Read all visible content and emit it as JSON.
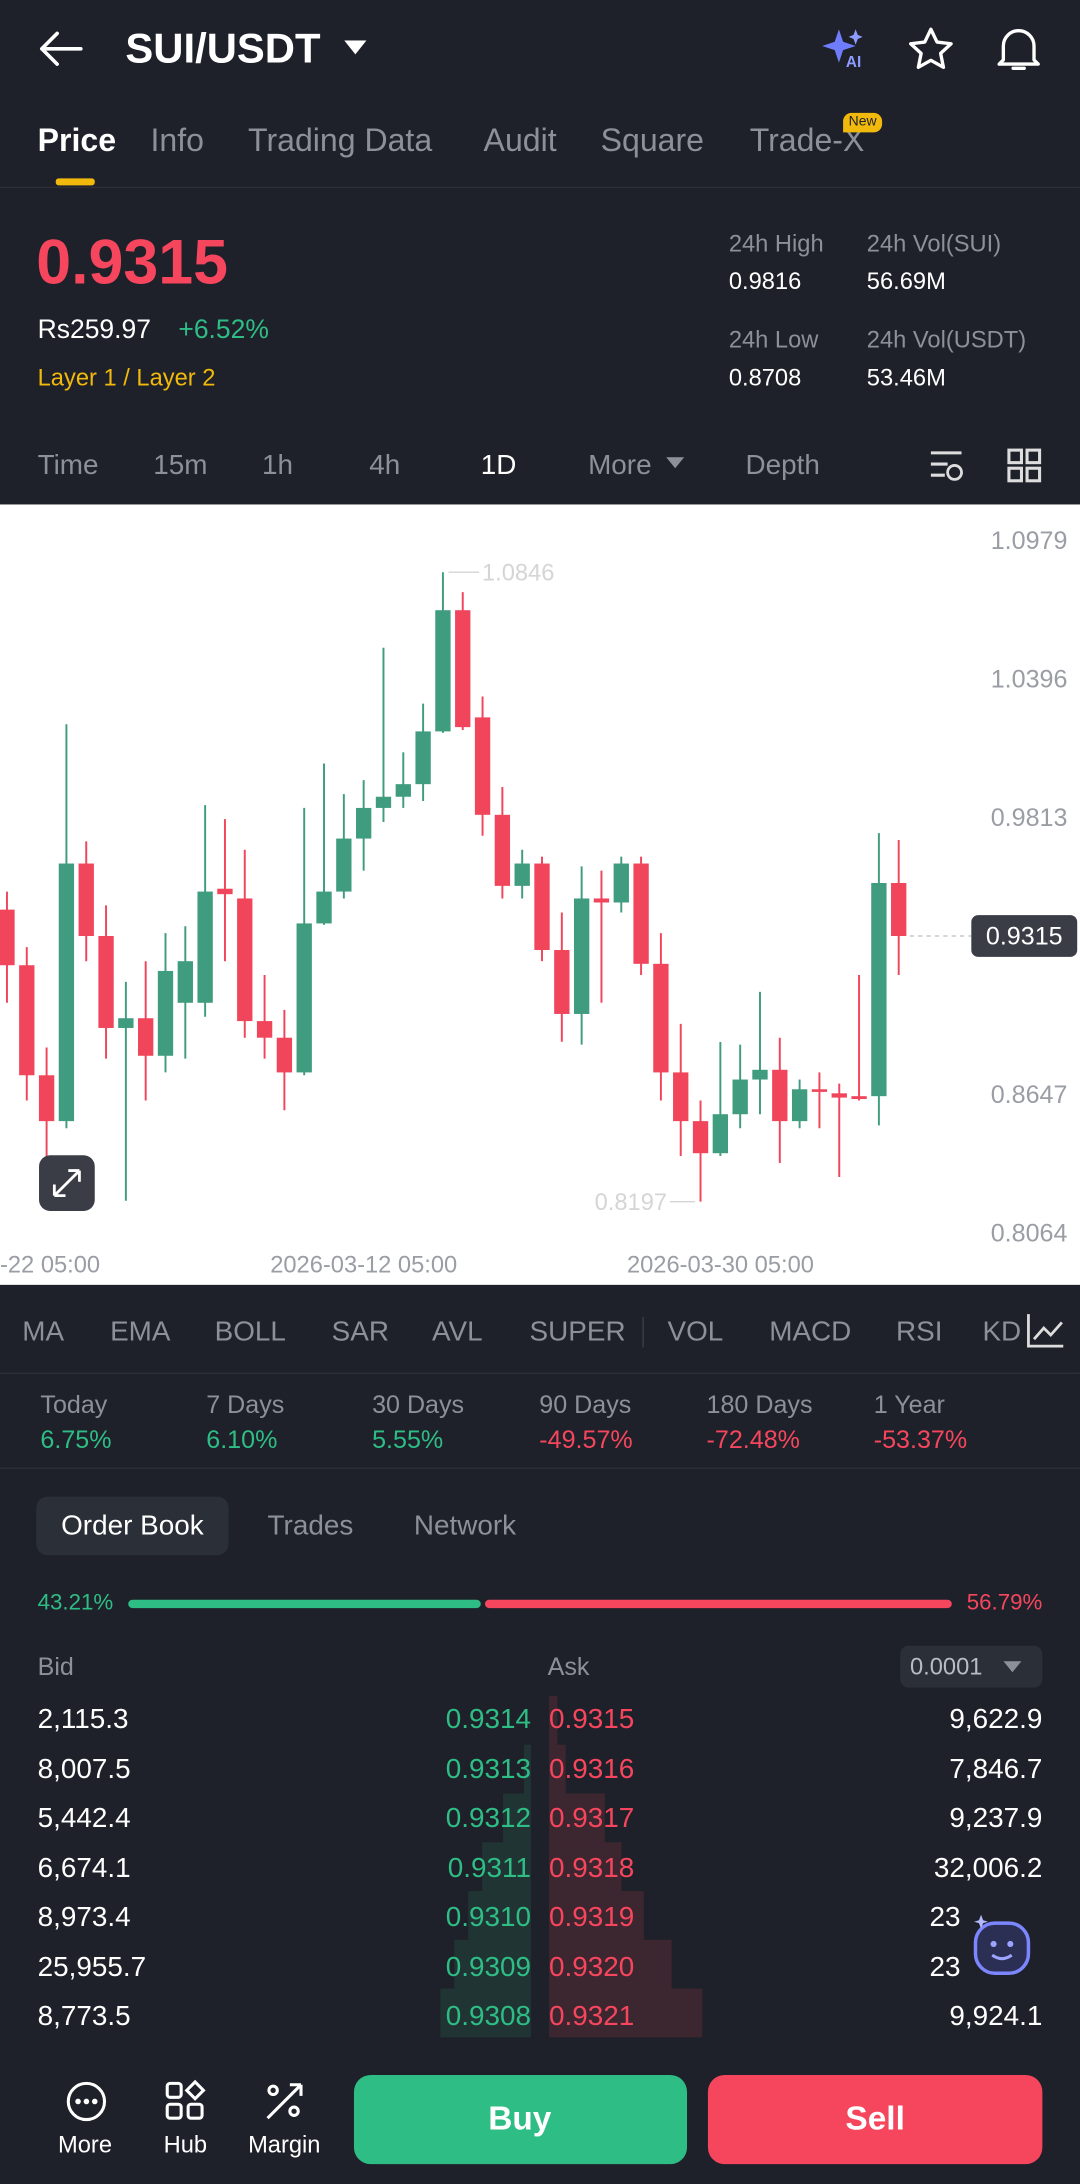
{
  "header": {
    "title": "SUI/USDT"
  },
  "tabs": [
    "Price",
    "Info",
    "Trading Data",
    "Audit",
    "Square",
    "Trade-X"
  ],
  "badge": "New",
  "ticker": {
    "price": "0.9315",
    "fiat": "Rs259.97",
    "change": "+6.52%",
    "tags": "Layer 1 / Layer 2",
    "stats": [
      {
        "label": "24h High",
        "value": "0.9816"
      },
      {
        "label": "24h Vol(SUI)",
        "value": "56.69M"
      },
      {
        "label": "24h Low",
        "value": "0.8708"
      },
      {
        "label": "24h Vol(USDT)",
        "value": "53.46M"
      }
    ]
  },
  "intervals": [
    "Time",
    "15m",
    "1h",
    "4h",
    "1D",
    "More",
    "Depth"
  ],
  "chart": {
    "type": "candlestick",
    "ylim": [
      0.7847,
      1.1131
    ],
    "yticks": [
      1.0979,
      1.0396,
      0.9813,
      0.8647,
      0.8064
    ],
    "last": 0.9315,
    "x_labels": [
      "-22 05:00",
      "2026-03-12 05:00",
      "2026-03-30 05:00"
    ],
    "candles": [
      {
        "open": 0.9426,
        "high": 0.9502,
        "low": 0.9034,
        "close": 0.9192
      },
      {
        "open": 0.9192,
        "high": 0.9268,
        "low": 0.8623,
        "close": 0.8729
      },
      {
        "open": 0.8729,
        "high": 0.8846,
        "low": 0.836,
        "close": 0.8536
      },
      {
        "open": 0.8536,
        "high": 1.0206,
        "low": 0.8506,
        "close": 0.962
      },
      {
        "open": 0.962,
        "high": 0.9713,
        "low": 0.9209,
        "close": 0.9315
      },
      {
        "open": 0.9315,
        "high": 0.9444,
        "low": 0.8799,
        "close": 0.8928
      },
      {
        "open": 0.8928,
        "high": 0.9122,
        "low": 0.8201,
        "close": 0.8969
      },
      {
        "open": 0.8969,
        "high": 0.9209,
        "low": 0.8623,
        "close": 0.8811
      },
      {
        "open": 0.8811,
        "high": 0.9327,
        "low": 0.8741,
        "close": 0.9168
      },
      {
        "open": 0.9034,
        "high": 0.9356,
        "low": 0.8799,
        "close": 0.9209
      },
      {
        "open": 0.9034,
        "high": 0.9866,
        "low": 0.8975,
        "close": 0.9502
      },
      {
        "open": 0.9514,
        "high": 0.9807,
        "low": 0.9209,
        "close": 0.9491
      },
      {
        "open": 0.9473,
        "high": 0.9678,
        "low": 0.8887,
        "close": 0.8957
      },
      {
        "open": 0.8957,
        "high": 0.9151,
        "low": 0.8799,
        "close": 0.8887
      },
      {
        "open": 0.8887,
        "high": 0.9004,
        "low": 0.8582,
        "close": 0.8741
      },
      {
        "open": 0.8741,
        "high": 0.9854,
        "low": 0.8729,
        "close": 0.9368
      },
      {
        "open": 0.9368,
        "high": 1.0041,
        "low": 0.9362,
        "close": 0.9502
      },
      {
        "open": 0.9502,
        "high": 0.9912,
        "low": 0.9473,
        "close": 0.9725
      },
      {
        "open": 0.9725,
        "high": 0.9971,
        "low": 0.959,
        "close": 0.9854
      },
      {
        "open": 0.9854,
        "high": 1.0528,
        "low": 0.9795,
        "close": 0.9901
      },
      {
        "open": 0.9901,
        "high": 1.0088,
        "low": 0.9854,
        "close": 0.9954
      },
      {
        "open": 0.9954,
        "high": 1.0293,
        "low": 0.9883,
        "close": 1.0176
      },
      {
        "open": 1.0176,
        "high": 1.0846,
        "low": 1.017,
        "close": 1.0686
      },
      {
        "open": 1.0686,
        "high": 1.0762,
        "low": 1.0182,
        "close": 1.0194
      },
      {
        "open": 1.0235,
        "high": 1.0323,
        "low": 0.9737,
        "close": 0.9825
      },
      {
        "open": 0.9825,
        "high": 0.9942,
        "low": 0.9473,
        "close": 0.9526
      },
      {
        "open": 0.9526,
        "high": 0.9678,
        "low": 0.9473,
        "close": 0.962
      },
      {
        "open": 0.962,
        "high": 0.9649,
        "low": 0.9209,
        "close": 0.9256
      },
      {
        "open": 0.9256,
        "high": 0.9414,
        "low": 0.887,
        "close": 0.8987
      },
      {
        "open": 0.8987,
        "high": 0.9608,
        "low": 0.8858,
        "close": 0.9473
      },
      {
        "open": 0.9473,
        "high": 0.959,
        "low": 0.9034,
        "close": 0.9456
      },
      {
        "open": 0.9456,
        "high": 0.9649,
        "low": 0.9414,
        "close": 0.962
      },
      {
        "open": 0.962,
        "high": 0.9649,
        "low": 0.9151,
        "close": 0.9198
      },
      {
        "open": 0.9198,
        "high": 0.9327,
        "low": 0.8623,
        "close": 0.8741
      },
      {
        "open": 0.8741,
        "high": 0.8945,
        "low": 0.8389,
        "close": 0.8536
      },
      {
        "open": 0.8536,
        "high": 0.8623,
        "low": 0.8197,
        "close": 0.8401
      },
      {
        "open": 0.8401,
        "high": 0.8869,
        "low": 0.8389,
        "close": 0.8565
      },
      {
        "open": 0.8565,
        "high": 0.8858,
        "low": 0.8506,
        "close": 0.8711
      },
      {
        "open": 0.8711,
        "high": 0.908,
        "low": 0.8565,
        "close": 0.8752
      },
      {
        "open": 0.8752,
        "high": 0.8887,
        "low": 0.836,
        "close": 0.8536
      },
      {
        "open": 0.8536,
        "high": 0.8711,
        "low": 0.8506,
        "close": 0.867
      },
      {
        "open": 0.867,
        "high": 0.8741,
        "low": 0.8506,
        "close": 0.8659
      },
      {
        "open": 0.8653,
        "high": 0.8694,
        "low": 0.8301,
        "close": 0.8635
      },
      {
        "open": 0.8641,
        "high": 0.9151,
        "low": 0.8623,
        "close": 0.8629
      },
      {
        "open": 0.8641,
        "high": 0.9748,
        "low": 0.8518,
        "close": 0.9538
      },
      {
        "open": 0.9538,
        "high": 0.9719,
        "low": 0.9151,
        "close": 0.9315
      }
    ]
  },
  "indicators": [
    "MA",
    "EMA",
    "BOLL",
    "SAR",
    "AVL",
    "SUPER",
    "VOL",
    "MACD",
    "RSI",
    "KD"
  ],
  "performance": [
    {
      "label": "Today",
      "value": "6.75%"
    },
    {
      "label": "7 Days",
      "value": "6.10%"
    },
    {
      "label": "30 Days",
      "value": "5.55%"
    },
    {
      "label": "90 Days",
      "value": "-49.57%"
    },
    {
      "label": "180 Days",
      "value": "-72.48%"
    },
    {
      "label": "1 Year",
      "value": "-53.37%"
    }
  ],
  "book_tabs": [
    "Order Book",
    "Trades",
    "Network"
  ],
  "ratio": {
    "values": [
      43.21,
      56.79
    ],
    "value_labels": [
      "43.21%",
      "56.79%"
    ]
  },
  "book": {
    "bid_header": "Bid",
    "ask_header": "Ask",
    "step": "0.0001",
    "rows": [
      [
        "2,115.3",
        "0.9314",
        "0.9315",
        "9,622.9"
      ],
      [
        "8,007.5",
        "0.9313",
        "0.9316",
        "7,846.7"
      ],
      [
        "5,442.4",
        "0.9312",
        "0.9317",
        "9,237.9"
      ],
      [
        "6,674.1",
        "0.9311",
        "0.9318",
        "32,006.2"
      ],
      [
        "8,973.4",
        "0.9310",
        "0.9319",
        "23"
      ],
      [
        "25,955.7",
        "0.9309",
        "0.9320",
        "23"
      ],
      [
        "8,773.5",
        "0.9308",
        "0.9321",
        "9,924.1"
      ]
    ]
  },
  "nav": [
    "More",
    "Hub",
    "Margin"
  ],
  "actions": [
    "Buy",
    "Sell"
  ]
}
